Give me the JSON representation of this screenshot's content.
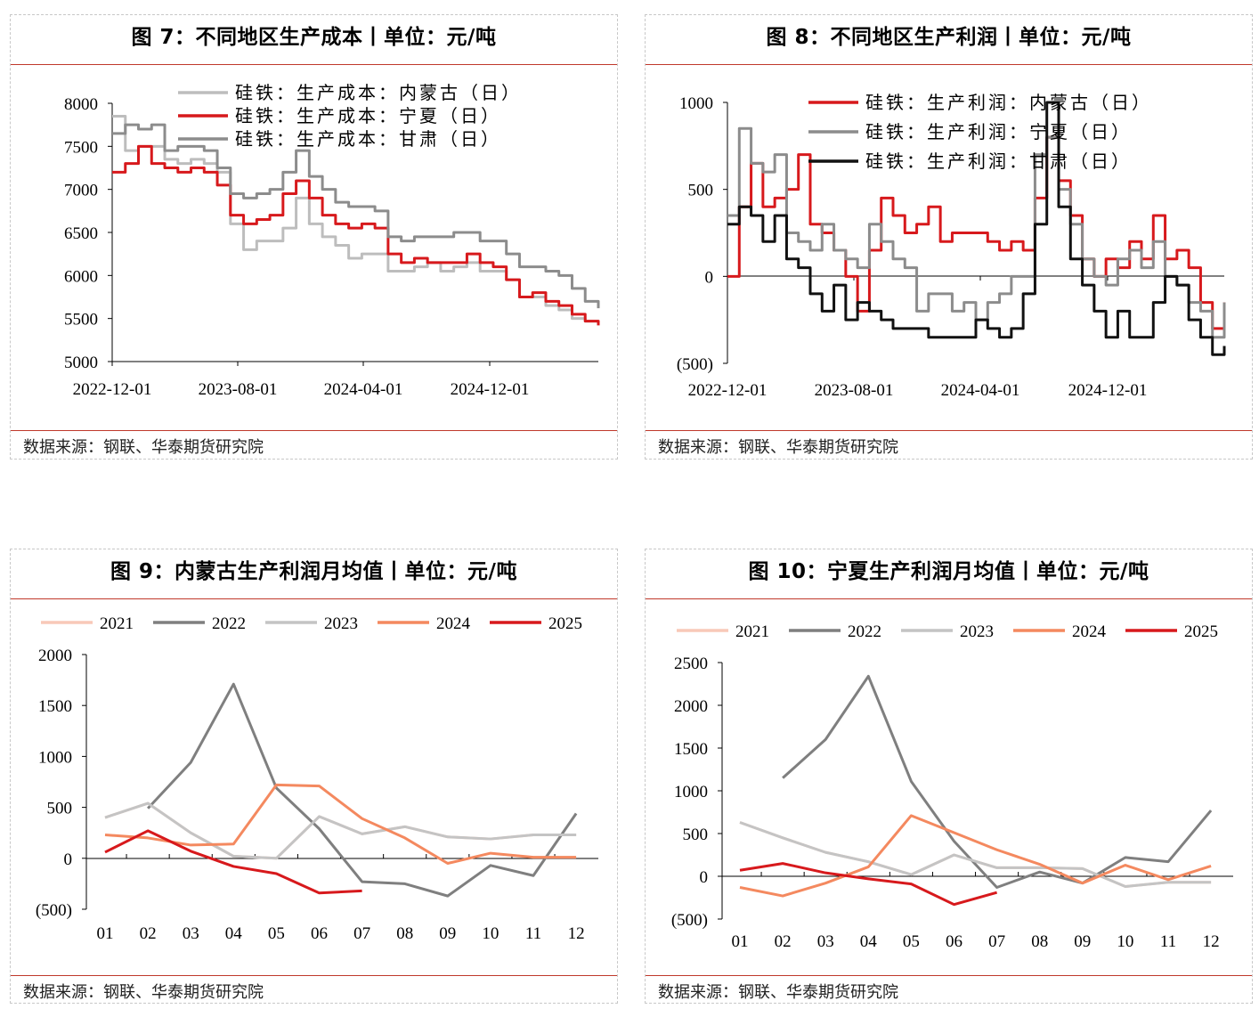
{
  "colors": {
    "red": "#d7191c",
    "light_gray": "#bdbdbd",
    "mid_gray": "#8c8c8c",
    "black": "#111111",
    "y2021": "#f8c9b8",
    "y2022": "#7f7f7f",
    "y2023": "#c4c4c4",
    "y2024": "#f4895f",
    "y2025": "#d7191c",
    "negative_label": "#cc0000"
  },
  "panels": [
    {
      "title": "图 7：不同地区生产成本丨单位：元/吨",
      "source": "数据来源：钢联、华泰期货研究院"
    },
    {
      "title": "图 8：不同地区生产利润丨单位：元/吨",
      "source": "数据来源：钢联、华泰期货研究院"
    },
    {
      "title": "图 9：内蒙古生产利润月均值丨单位：元/吨",
      "source": "数据来源：钢联、华泰期货研究院"
    },
    {
      "title": "图 10：宁夏生产利润月均值丨单位：元/吨",
      "source": "数据来源：钢联、华泰期货研究院"
    }
  ],
  "chart_data": [
    {
      "type": "line",
      "title": "图 7：不同地区生产成本丨单位：元/吨",
      "x_ticks": [
        "2022-12-01",
        "2023-08-01",
        "2024-04-01",
        "2024-12-01"
      ],
      "ylim": [
        5000,
        8000
      ],
      "y_ticks": [
        "8000",
        "7500",
        "7000",
        "6500",
        "6000",
        "5500",
        "5000"
      ],
      "legend_position": "top",
      "series": [
        {
          "name": "硅铁：生产成本：内蒙古（日）",
          "values": [
            7850,
            7450,
            7500,
            7500,
            7350,
            7300,
            7350,
            7300,
            7200,
            6600,
            6300,
            6400,
            6400,
            6550,
            6900,
            6600,
            6450,
            6350,
            6200,
            6250,
            6250,
            6050,
            6050,
            6100,
            6150,
            6050,
            6100,
            6150,
            6050,
            6050,
            5950,
            5750,
            5750,
            5650,
            5600,
            5500,
            5470,
            5450
          ]
        },
        {
          "name": "硅铁：生产成本：宁夏（日）",
          "values": [
            7200,
            7300,
            7500,
            7300,
            7250,
            7200,
            7250,
            7200,
            7050,
            6700,
            6600,
            6650,
            6700,
            6950,
            7100,
            6900,
            6700,
            6600,
            6550,
            6600,
            6550,
            6250,
            6150,
            6200,
            6150,
            6150,
            6150,
            6250,
            6150,
            6100,
            5950,
            5750,
            5800,
            5700,
            5650,
            5550,
            5470,
            5420
          ]
        },
        {
          "name": "硅铁：生产成本：甘肃（日）",
          "values": [
            7650,
            7750,
            7700,
            7750,
            7450,
            7500,
            7500,
            7450,
            7250,
            6950,
            6900,
            6950,
            7000,
            7200,
            7450,
            7150,
            7000,
            6850,
            6800,
            6800,
            6750,
            6450,
            6400,
            6450,
            6450,
            6450,
            6500,
            6500,
            6400,
            6400,
            6250,
            6100,
            6100,
            6050,
            6000,
            5850,
            5700,
            5620
          ]
        }
      ]
    },
    {
      "type": "line",
      "title": "图 8：不同地区生产利润丨单位：元/吨",
      "x_ticks": [
        "2022-12-01",
        "2023-08-01",
        "2024-04-01",
        "2024-12-01"
      ],
      "ylim": [
        -500,
        1000
      ],
      "y_ticks": [
        "1000",
        "500",
        "0",
        "(500)"
      ],
      "legend_position": "top",
      "series": [
        {
          "name": "硅铁：生产利润：内蒙古（日）",
          "values": [
            0,
            400,
            650,
            400,
            450,
            500,
            700,
            300,
            250,
            150,
            0,
            -200,
            150,
            450,
            350,
            250,
            300,
            400,
            200,
            250,
            250,
            250,
            200,
            150,
            200,
            150,
            450,
            800,
            550,
            350,
            100,
            0,
            100,
            50,
            200,
            100,
            350,
            100,
            150,
            50,
            -150,
            -300,
            -150
          ]
        },
        {
          "name": "硅铁：生产利润：宁夏（日）",
          "values": [
            350,
            850,
            650,
            600,
            700,
            250,
            200,
            150,
            300,
            150,
            100,
            50,
            300,
            200,
            100,
            50,
            -200,
            -100,
            -100,
            -200,
            -150,
            -250,
            -150,
            -100,
            0,
            0,
            700,
            800,
            500,
            300,
            100,
            0,
            -50,
            100,
            150,
            50,
            200,
            0,
            -50,
            -150,
            -200,
            -350,
            -150
          ]
        },
        {
          "name": "硅铁：生产利润：甘肃（日）",
          "values": [
            300,
            400,
            350,
            200,
            350,
            100,
            50,
            -100,
            -200,
            -50,
            -250,
            -150,
            -200,
            -250,
            -300,
            -300,
            -300,
            -350,
            -350,
            -350,
            -350,
            -250,
            -300,
            -350,
            -300,
            -100,
            300,
            1000,
            400,
            100,
            -50,
            -200,
            -350,
            -200,
            -350,
            -350,
            -150,
            0,
            -50,
            -250,
            -350,
            -450,
            -400
          ]
        }
      ]
    },
    {
      "type": "line",
      "title": "图 9：内蒙古生产利润月均值丨单位：元/吨",
      "categories": [
        "01",
        "02",
        "03",
        "04",
        "05",
        "06",
        "07",
        "08",
        "09",
        "10",
        "11",
        "12"
      ],
      "ylim": [
        -500,
        2000
      ],
      "y_ticks": [
        "2000",
        "1500",
        "1000",
        "500",
        "0",
        "(500)"
      ],
      "legend_position": "top",
      "series": [
        {
          "name": "2021",
          "values": [
            400,
            540,
            250,
            20,
            0,
            410,
            240,
            310,
            210,
            190,
            230,
            230
          ]
        },
        {
          "name": "2022",
          "values": [
            null,
            490,
            940,
            1710,
            690,
            290,
            -230,
            -250,
            -370,
            -70,
            -170,
            440
          ]
        },
        {
          "name": "2023",
          "values": [
            400,
            540,
            250,
            20,
            0,
            410,
            240,
            310,
            210,
            190,
            230,
            230
          ]
        },
        {
          "name": "2024",
          "values": [
            230,
            200,
            130,
            140,
            720,
            710,
            390,
            200,
            -50,
            50,
            10,
            10
          ]
        },
        {
          "name": "2025",
          "values": [
            60,
            270,
            70,
            -80,
            -150,
            -340,
            -320,
            null,
            null,
            null,
            null,
            null
          ]
        }
      ]
    },
    {
      "type": "line",
      "title": "图 10：宁夏生产利润月均值丨单位：元/吨",
      "categories": [
        "01",
        "02",
        "03",
        "04",
        "05",
        "06",
        "07",
        "08",
        "09",
        "10",
        "11",
        "12"
      ],
      "ylim": [
        -500,
        2500
      ],
      "y_ticks": [
        "2500",
        "2000",
        "1500",
        "1000",
        "500",
        "0",
        "(500)"
      ],
      "legend_position": "top",
      "series": [
        {
          "name": "2021",
          "values": [
            630,
            450,
            280,
            170,
            20,
            250,
            100,
            100,
            90,
            -120,
            -70,
            -70
          ]
        },
        {
          "name": "2022",
          "values": [
            null,
            1150,
            1600,
            2340,
            1110,
            410,
            -130,
            50,
            -80,
            220,
            170,
            770
          ]
        },
        {
          "name": "2023",
          "values": [
            630,
            450,
            280,
            170,
            20,
            250,
            100,
            100,
            90,
            -120,
            -70,
            -70
          ]
        },
        {
          "name": "2024",
          "values": [
            -130,
            -230,
            -80,
            110,
            710,
            510,
            310,
            140,
            -80,
            130,
            -40,
            120
          ]
        },
        {
          "name": "2025",
          "values": [
            70,
            150,
            40,
            -30,
            -90,
            -330,
            -190,
            null,
            null,
            null,
            null,
            null
          ]
        }
      ]
    }
  ]
}
